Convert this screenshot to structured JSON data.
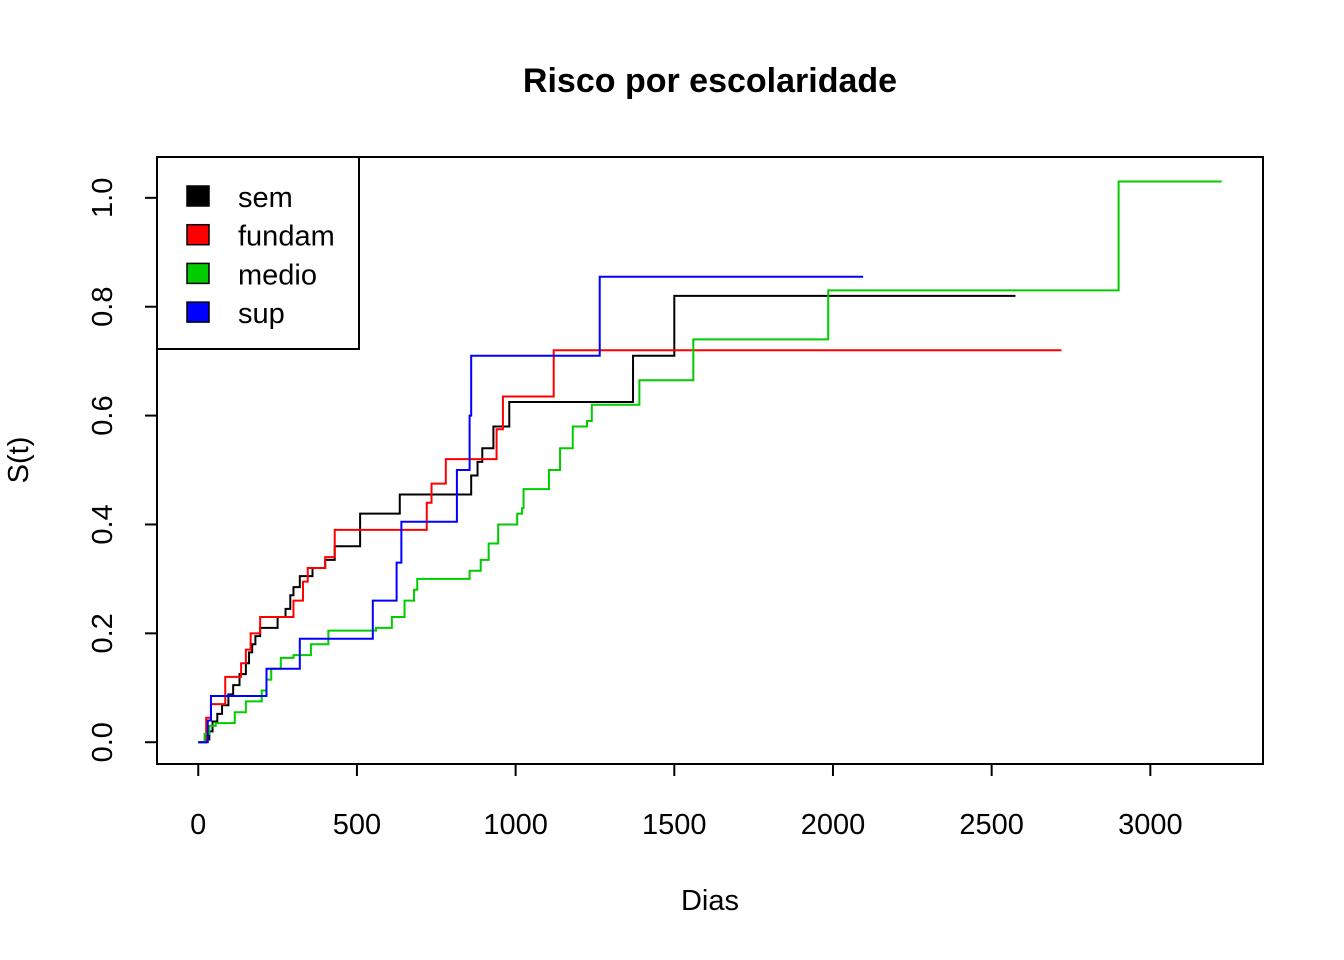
{
  "chart_data": {
    "type": "line",
    "step": true,
    "title": "Risco por escolaridade",
    "xlabel": "Dias",
    "ylabel": "S(t)",
    "xlim": [
      -130,
      3355
    ],
    "ylim": [
      -0.04,
      1.075
    ],
    "x_ticks": [
      0,
      500,
      1000,
      1500,
      2000,
      2500,
      3000
    ],
    "x_tick_labels": [
      "0",
      "500",
      "1000",
      "1500",
      "2000",
      "2500",
      "3000"
    ],
    "y_ticks": [
      0.0,
      0.2,
      0.4,
      0.6,
      0.8,
      1.0
    ],
    "y_tick_labels": [
      "0.0",
      "0.2",
      "0.4",
      "0.6",
      "0.8",
      "1.0"
    ],
    "grid": false,
    "legend_position": "top-left",
    "series": [
      {
        "name": "sem",
        "color": "#000000",
        "x": [
          0,
          25,
          35,
          45,
          60,
          75,
          95,
          110,
          130,
          150,
          160,
          170,
          180,
          195,
          250,
          275,
          290,
          300,
          320,
          360,
          400,
          430,
          510,
          635,
          815,
          860,
          880,
          895,
          930,
          980,
          1370,
          1500,
          2575
        ],
        "y": [
          0.0,
          0.005,
          0.02,
          0.038,
          0.052,
          0.068,
          0.088,
          0.105,
          0.125,
          0.145,
          0.165,
          0.18,
          0.195,
          0.21,
          0.23,
          0.245,
          0.27,
          0.285,
          0.305,
          0.32,
          0.335,
          0.36,
          0.42,
          0.455,
          0.455,
          0.49,
          0.515,
          0.54,
          0.58,
          0.625,
          0.71,
          0.82,
          0.82
        ]
      },
      {
        "name": "fundam",
        "color": "#ff0000",
        "x": [
          0,
          25,
          40,
          85,
          135,
          150,
          165,
          195,
          255,
          300,
          330,
          345,
          400,
          430,
          560,
          720,
          735,
          780,
          940,
          960,
          1120,
          2720
        ],
        "y": [
          0.0,
          0.045,
          0.07,
          0.12,
          0.145,
          0.17,
          0.2,
          0.23,
          0.23,
          0.26,
          0.295,
          0.32,
          0.34,
          0.39,
          0.39,
          0.44,
          0.475,
          0.52,
          0.575,
          0.635,
          0.72,
          0.72
        ]
      },
      {
        "name": "medio",
        "color": "#00cc00",
        "x": [
          0,
          20,
          35,
          55,
          115,
          150,
          175,
          200,
          215,
          230,
          260,
          300,
          355,
          410,
          560,
          610,
          650,
          680,
          690,
          855,
          890,
          915,
          945,
          1005,
          1020,
          1025,
          1080,
          1105,
          1140,
          1180,
          1225,
          1240,
          1390,
          1420,
          1560,
          1985,
          2900,
          3225
        ],
        "y": [
          0.0,
          0.015,
          0.03,
          0.035,
          0.055,
          0.075,
          0.075,
          0.095,
          0.115,
          0.135,
          0.155,
          0.16,
          0.18,
          0.205,
          0.21,
          0.23,
          0.26,
          0.28,
          0.3,
          0.315,
          0.335,
          0.365,
          0.4,
          0.42,
          0.43,
          0.465,
          0.465,
          0.5,
          0.54,
          0.58,
          0.59,
          0.62,
          0.665,
          0.665,
          0.74,
          0.83,
          1.03,
          1.03
        ]
      },
      {
        "name": "sup",
        "color": "#0000ff",
        "x": [
          0,
          30,
          40,
          215,
          320,
          550,
          625,
          640,
          815,
          855,
          860,
          1265,
          2095
        ],
        "y": [
          0.0,
          0.04,
          0.085,
          0.135,
          0.19,
          0.26,
          0.33,
          0.405,
          0.5,
          0.6,
          0.71,
          0.855,
          0.855
        ]
      }
    ]
  }
}
